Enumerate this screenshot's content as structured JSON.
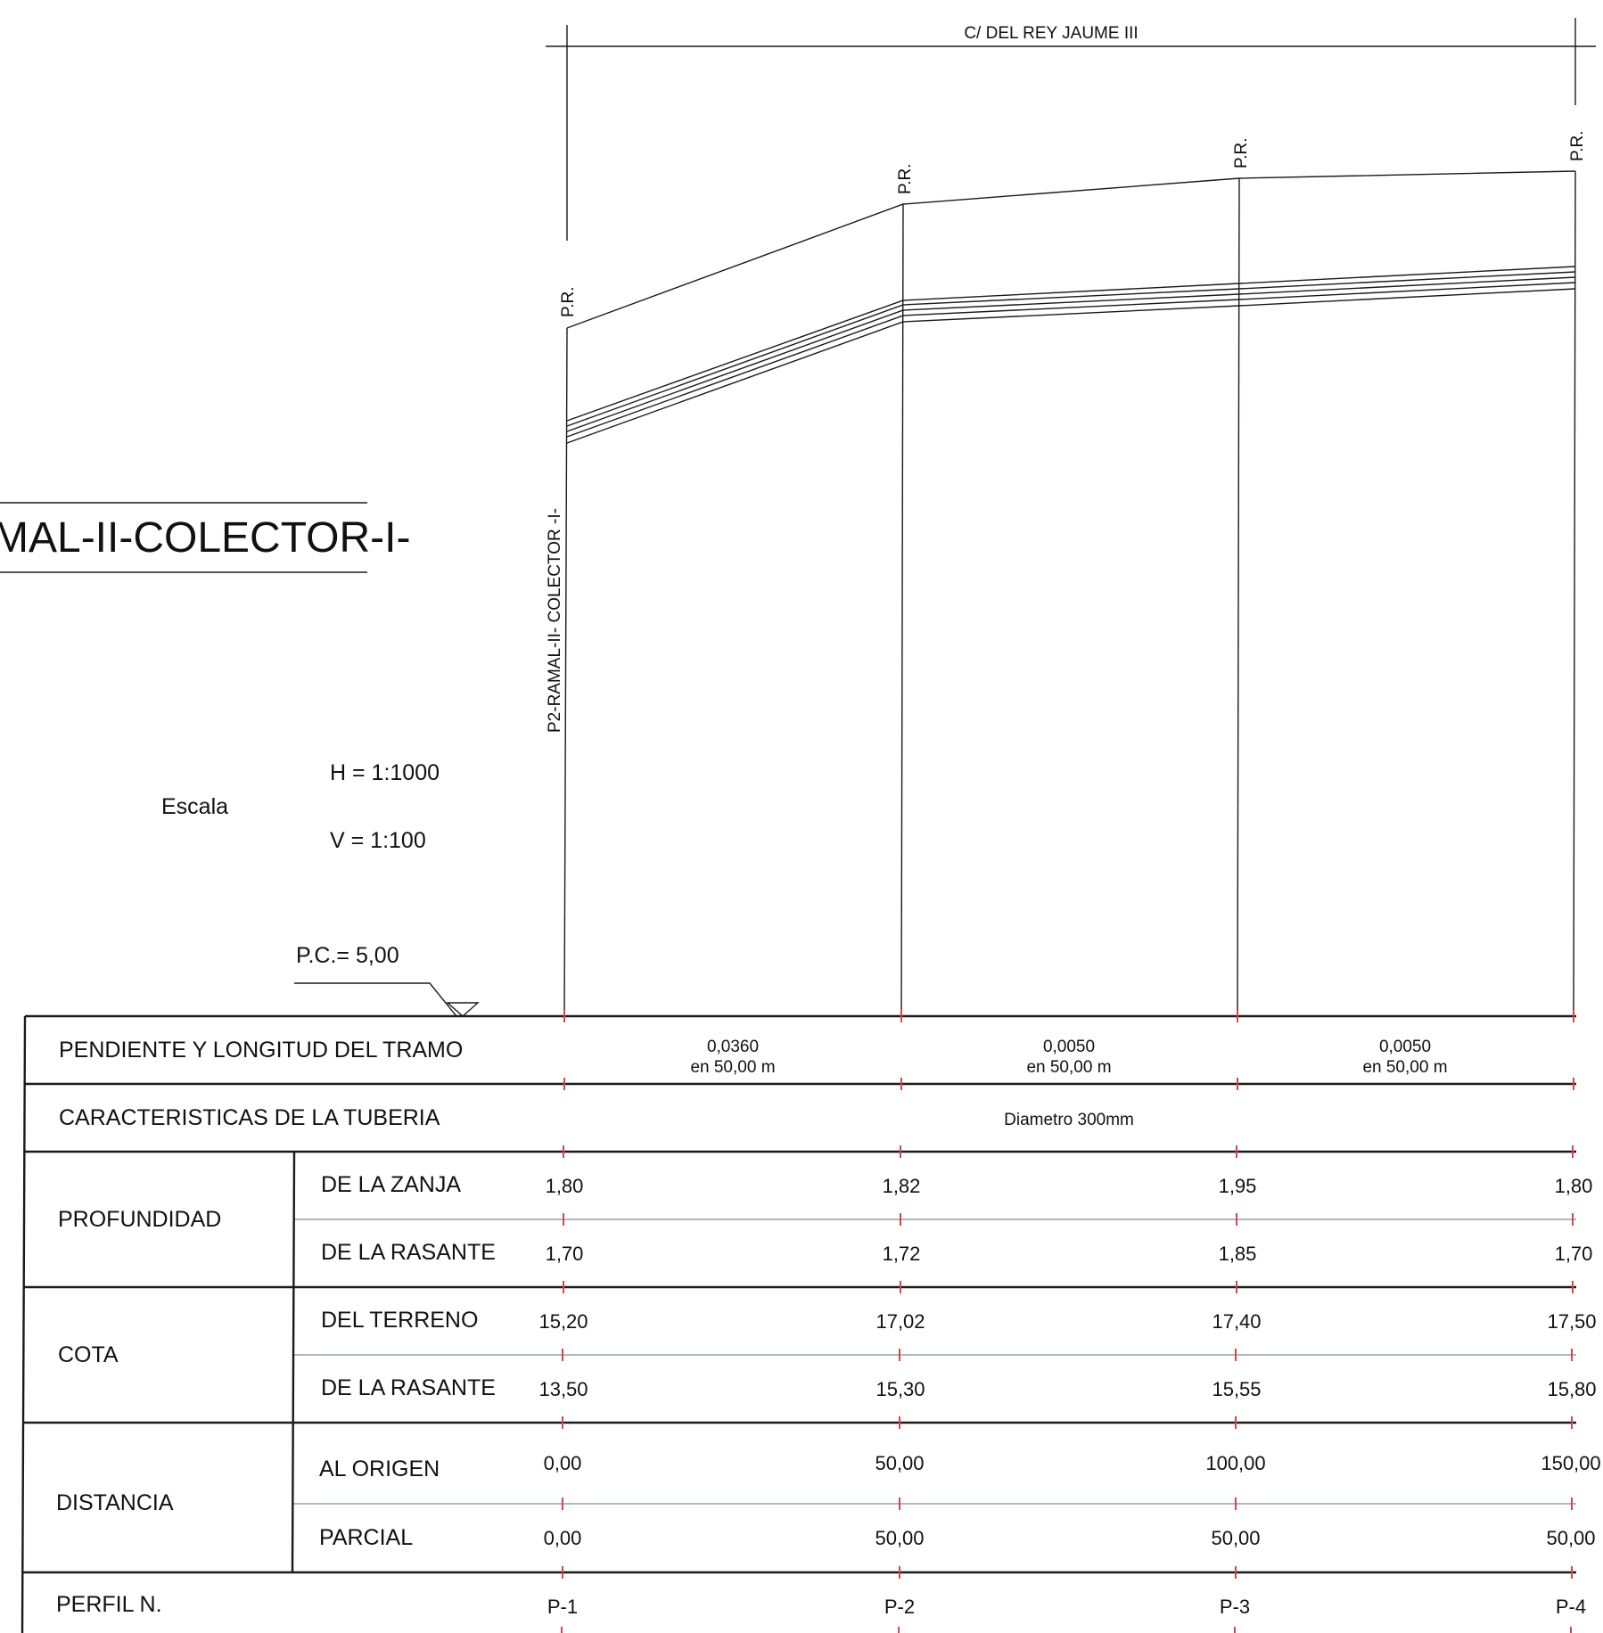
{
  "street_label": "C/ DEL REY JAUME III",
  "profile_title": "MAL-II-COLECTOR-I-",
  "vertical_label": "P2-RAMAL-II- COLECTOR -I-",
  "pr_label": "P.R.",
  "scale": {
    "label": "Escala",
    "h": "H = 1:1000",
    "v": "V = 1:100"
  },
  "pc_label": "P.C.= 5,00",
  "table": {
    "pendiente": {
      "label": "PENDIENTE Y LONGITUD DEL TRAMO",
      "segments": [
        {
          "slope": "0,0360",
          "length": "en 50,00 m"
        },
        {
          "slope": "0,0050",
          "length": "en 50,00 m"
        },
        {
          "slope": "0,0050",
          "length": "en 50,00 m"
        }
      ]
    },
    "tuberia": {
      "label": "CARACTERISTICAS DE LA TUBERIA",
      "value": "Diametro 300mm"
    },
    "profundidad": {
      "label": "PROFUNDIDAD",
      "zanja": {
        "label": "DE LA ZANJA",
        "values": [
          "1,80",
          "1,82",
          "1,95",
          "1,80"
        ]
      },
      "rasante": {
        "label": "DE LA RASANTE",
        "values": [
          "1,70",
          "1,72",
          "1,85",
          "1,70"
        ]
      }
    },
    "cota": {
      "label": "COTA",
      "terreno": {
        "label": "DEL TERRENO",
        "values": [
          "15,20",
          "17,02",
          "17,40",
          "17,50"
        ]
      },
      "rasante": {
        "label": "DE LA RASANTE",
        "values": [
          "13,50",
          "15,30",
          "15,55",
          "15,80"
        ]
      }
    },
    "distancia": {
      "label": "DISTANCIA",
      "origen": {
        "label": "AL ORIGEN",
        "values": [
          "0,00",
          "50,00",
          "100,00",
          "150,00"
        ]
      },
      "parcial": {
        "label": "PARCIAL",
        "values": [
          "0,00",
          "50,00",
          "50,00",
          "50,00"
        ]
      }
    },
    "perfil": {
      "label": "PERFIL N.",
      "values": [
        "P-1",
        "P-2",
        "P-3",
        "P-4"
      ]
    }
  },
  "colors": {
    "line": "#1a1a1a",
    "tick": "#d84545",
    "divider": "#7d8f93"
  }
}
